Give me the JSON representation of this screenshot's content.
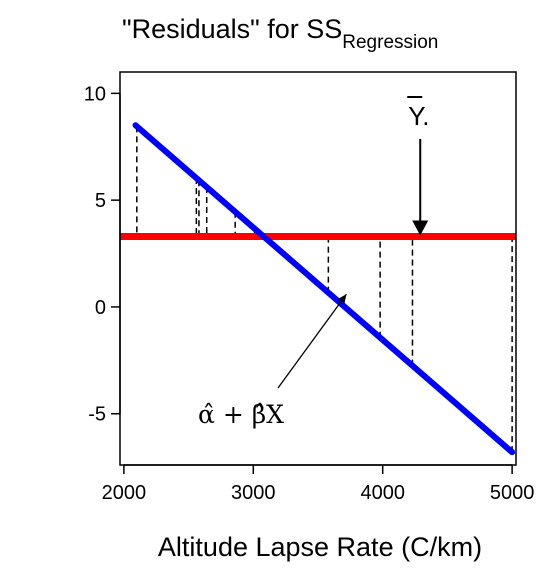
{
  "chart_data": {
    "type": "line",
    "title": {
      "main": "\"Residuals\" for SS",
      "subscript": "Regression"
    },
    "xlabel": "Altitude Lapse Rate (C/km)",
    "ylabel": "",
    "xlim": [
      1970,
      5030
    ],
    "ylim": [
      -7.4,
      11.0
    ],
    "x_ticks": [
      2000,
      3000,
      4000,
      5000
    ],
    "y_ticks": [
      10,
      5,
      0,
      -5
    ],
    "grid": false,
    "mean_line": {
      "y": 3.3,
      "color": "#ff0000"
    },
    "fit_line": {
      "intercept": 19.5,
      "slope": -0.00526,
      "x_range": [
        2090,
        5000
      ],
      "color": "#0000ff"
    },
    "residual_x": [
      2100,
      2560,
      2580,
      2640,
      2860,
      3010,
      3580,
      3980,
      4230,
      5000
    ],
    "annotations": {
      "ybar": {
        "label": "Y.",
        "arrow_to": [
          4290,
          3.3
        ]
      },
      "fit": {
        "label": "α̂ + β̂X",
        "arrow_to": [
          3720,
          0.6
        ]
      }
    }
  }
}
